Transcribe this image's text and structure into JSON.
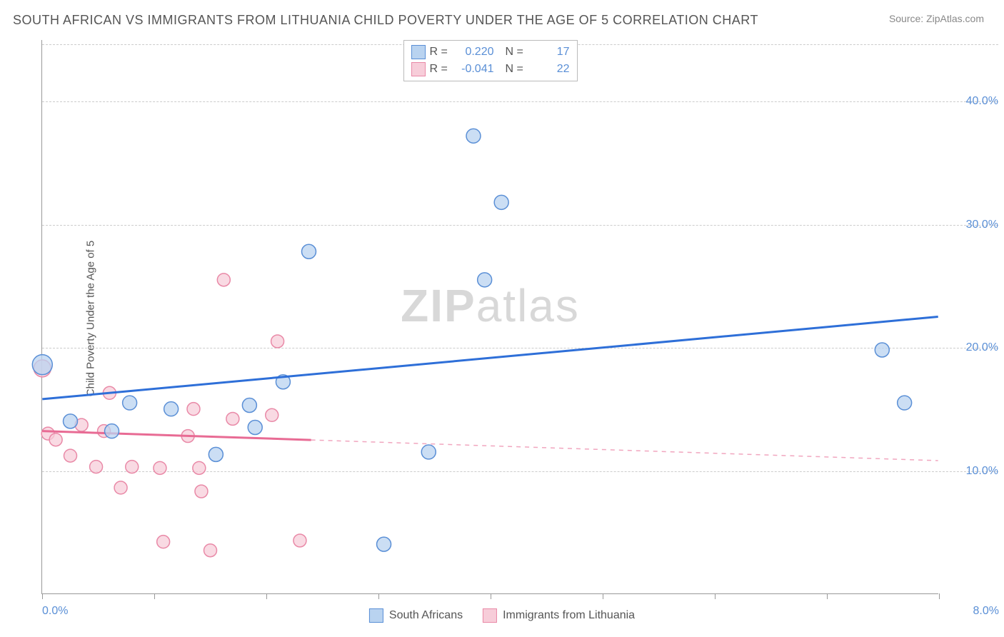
{
  "title": "SOUTH AFRICAN VS IMMIGRANTS FROM LITHUANIA CHILD POVERTY UNDER THE AGE OF 5 CORRELATION CHART",
  "source": "Source: ZipAtlas.com",
  "y_axis_label": "Child Poverty Under the Age of 5",
  "watermark_bold": "ZIP",
  "watermark_rest": "atlas",
  "colors": {
    "series_a_fill": "#b9d3f0",
    "series_a_stroke": "#5a8fd6",
    "series_a_line": "#2e6fd8",
    "series_b_fill": "#f7cdd9",
    "series_b_stroke": "#e989a7",
    "series_b_line": "#e86b94",
    "axis_text_a": "#5a8fd6",
    "axis_text_b": "#5a8fd6",
    "grid": "#cccccc"
  },
  "xlim": [
    0,
    8
  ],
  "ylim": [
    0,
    45
  ],
  "y_ticks": [
    {
      "value": 10,
      "label": "10.0%"
    },
    {
      "value": 20,
      "label": "20.0%"
    },
    {
      "value": 30,
      "label": "30.0%"
    },
    {
      "value": 40,
      "label": "40.0%"
    }
  ],
  "x_ticks": [
    0,
    1,
    2,
    3,
    4,
    5,
    6,
    7,
    8
  ],
  "x_tick_labels": [
    {
      "value": 0,
      "label": "0.0%"
    },
    {
      "value": 8,
      "label": "8.0%"
    }
  ],
  "legend_top": [
    {
      "swatch": "a",
      "r_label": "R =",
      "r_value": "0.220",
      "n_label": "N =",
      "n_value": "17"
    },
    {
      "swatch": "b",
      "r_label": "R =",
      "r_value": "-0.041",
      "n_label": "N =",
      "n_value": "22"
    }
  ],
  "legend_bottom": [
    {
      "swatch": "a",
      "label": "South Africans"
    },
    {
      "swatch": "b",
      "label": "Immigrants from Lithuania"
    }
  ],
  "series_a": {
    "points": [
      {
        "x": 0.0,
        "y": 18.6,
        "r": 14
      },
      {
        "x": 0.25,
        "y": 14.0,
        "r": 10
      },
      {
        "x": 0.62,
        "y": 13.2,
        "r": 10
      },
      {
        "x": 0.78,
        "y": 15.5,
        "r": 10
      },
      {
        "x": 1.15,
        "y": 15.0,
        "r": 10
      },
      {
        "x": 1.55,
        "y": 11.3,
        "r": 10
      },
      {
        "x": 1.85,
        "y": 15.3,
        "r": 10
      },
      {
        "x": 1.9,
        "y": 13.5,
        "r": 10
      },
      {
        "x": 2.15,
        "y": 17.2,
        "r": 10
      },
      {
        "x": 2.38,
        "y": 27.8,
        "r": 10
      },
      {
        "x": 3.05,
        "y": 4.0,
        "r": 10
      },
      {
        "x": 3.45,
        "y": 11.5,
        "r": 10
      },
      {
        "x": 3.85,
        "y": 37.2,
        "r": 10
      },
      {
        "x": 4.1,
        "y": 31.8,
        "r": 10
      },
      {
        "x": 3.95,
        "y": 25.5,
        "r": 10
      },
      {
        "x": 7.5,
        "y": 19.8,
        "r": 10
      },
      {
        "x": 7.7,
        "y": 15.5,
        "r": 10
      }
    ],
    "trend": {
      "x1": 0,
      "y1": 15.8,
      "x2": 8.0,
      "y2": 22.5
    },
    "trend_solid_until_x": 8.0
  },
  "series_b": {
    "points": [
      {
        "x": 0.0,
        "y": 18.3,
        "r": 12
      },
      {
        "x": 0.05,
        "y": 13.0,
        "r": 9
      },
      {
        "x": 0.12,
        "y": 12.5,
        "r": 9
      },
      {
        "x": 0.25,
        "y": 11.2,
        "r": 9
      },
      {
        "x": 0.35,
        "y": 13.7,
        "r": 9
      },
      {
        "x": 0.48,
        "y": 10.3,
        "r": 9
      },
      {
        "x": 0.55,
        "y": 13.2,
        "r": 9
      },
      {
        "x": 0.6,
        "y": 16.3,
        "r": 9
      },
      {
        "x": 0.7,
        "y": 8.6,
        "r": 9
      },
      {
        "x": 0.8,
        "y": 10.3,
        "r": 9
      },
      {
        "x": 1.05,
        "y": 10.2,
        "r": 9
      },
      {
        "x": 1.08,
        "y": 4.2,
        "r": 9
      },
      {
        "x": 1.3,
        "y": 12.8,
        "r": 9
      },
      {
        "x": 1.35,
        "y": 15.0,
        "r": 9
      },
      {
        "x": 1.4,
        "y": 10.2,
        "r": 9
      },
      {
        "x": 1.42,
        "y": 8.3,
        "r": 9
      },
      {
        "x": 1.5,
        "y": 3.5,
        "r": 9
      },
      {
        "x": 1.62,
        "y": 25.5,
        "r": 9
      },
      {
        "x": 1.7,
        "y": 14.2,
        "r": 9
      },
      {
        "x": 2.05,
        "y": 14.5,
        "r": 9
      },
      {
        "x": 2.1,
        "y": 20.5,
        "r": 9
      },
      {
        "x": 2.3,
        "y": 4.3,
        "r": 9
      }
    ],
    "trend": {
      "x1": 0,
      "y1": 13.2,
      "x2": 8.0,
      "y2": 10.8
    },
    "trend_solid_until_x": 2.4
  }
}
